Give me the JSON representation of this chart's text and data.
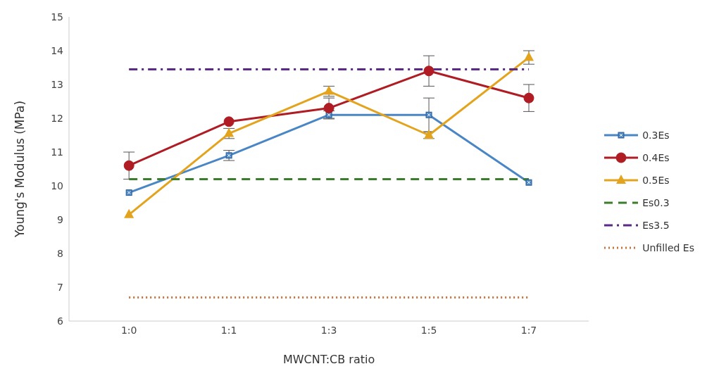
{
  "chart_data": {
    "type": "line",
    "xlabel": "MWCNT:CB ratio",
    "ylabel": "Young's Modulus (MPa)",
    "categories": [
      "1:0",
      "1:1",
      "1:3",
      "1:5",
      "1:7"
    ],
    "ylim": [
      6,
      15
    ],
    "yticks": [
      6,
      7,
      8,
      9,
      10,
      11,
      12,
      13,
      14,
      15
    ],
    "grid": false,
    "legend": "right",
    "series": [
      {
        "name": "0.3Es",
        "color": "#4a86c5",
        "marker": "square",
        "line_style": "solid",
        "values": [
          9.8,
          10.9,
          12.1,
          12.1,
          10.1
        ],
        "errors": [
          null,
          0.15,
          0.12,
          0.5,
          null
        ]
      },
      {
        "name": "0.4Es",
        "color": "#b01c24",
        "marker": "circle",
        "line_style": "solid",
        "values": [
          10.6,
          11.9,
          12.3,
          13.4,
          12.6
        ],
        "errors": [
          0.4,
          null,
          0.3,
          0.45,
          0.4
        ]
      },
      {
        "name": "0.5Es",
        "color": "#e3a31c",
        "marker": "triangle",
        "line_style": "solid",
        "values": [
          9.15,
          11.55,
          12.8,
          11.5,
          13.8
        ],
        "errors": [
          null,
          0.15,
          0.15,
          0.1,
          0.2
        ]
      },
      {
        "name": "Es0.3",
        "color": "#3a7d2c",
        "marker": "none",
        "line_style": "dashed",
        "values": [
          10.2,
          10.2,
          10.2,
          10.2,
          10.2
        ]
      },
      {
        "name": "Es3.5",
        "color": "#5b2a86",
        "marker": "none",
        "line_style": "dashdot",
        "values": [
          13.45,
          13.45,
          13.45,
          13.45,
          13.45
        ]
      },
      {
        "name": "Unfilled Es",
        "color": "#c8703a",
        "marker": "none",
        "line_style": "dotted",
        "values": [
          6.7,
          6.7,
          6.7,
          6.7,
          6.7
        ]
      }
    ]
  }
}
